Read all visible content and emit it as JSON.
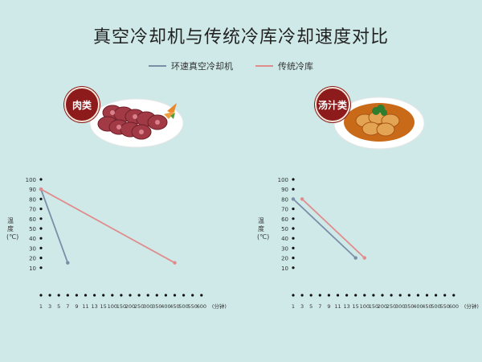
{
  "title": "真空冷却机与传统冷库冷却速度对比",
  "legend": [
    {
      "label": "环速真空冷却机",
      "color": "#7a8ea8"
    },
    {
      "label": "传统冷库",
      "color": "#e08c8c"
    }
  ],
  "badges": {
    "left": "肉类",
    "right": "汤汁类"
  },
  "chart_data": [
    {
      "type": "line",
      "ylabel": "温度(℃)",
      "xlabel_unit": "(分钟)",
      "categories": [
        "1",
        "3",
        "5",
        "7",
        "9",
        "11",
        "13",
        "15",
        "100",
        "150",
        "200",
        "250",
        "300",
        "350",
        "400",
        "450",
        "500",
        "550",
        "600"
      ],
      "yticks": [
        10,
        20,
        30,
        40,
        50,
        60,
        70,
        80,
        90,
        100
      ],
      "ylim": [
        0,
        100
      ],
      "series": [
        {
          "name": "环速真空冷却机",
          "color": "#7a8ea8",
          "points": [
            {
              "x": "1",
              "y": 90
            },
            {
              "x": "7",
              "y": 15
            }
          ]
        },
        {
          "name": "传统冷库",
          "color": "#e08c8c",
          "points": [
            {
              "x": "1",
              "y": 90
            },
            {
              "x": "450",
              "y": 15
            }
          ]
        }
      ]
    },
    {
      "type": "line",
      "ylabel": "温度(℃)",
      "xlabel_unit": "(分钟)",
      "categories": [
        "1",
        "3",
        "5",
        "7",
        "9",
        "11",
        "13",
        "15",
        "100",
        "150",
        "200",
        "250",
        "300",
        "350",
        "400",
        "450",
        "500",
        "550",
        "600"
      ],
      "yticks": [
        10,
        20,
        30,
        40,
        50,
        60,
        70,
        80,
        90,
        100
      ],
      "ylim": [
        0,
        100
      ],
      "series": [
        {
          "name": "环速真空冷却机",
          "color": "#7a8ea8",
          "points": [
            {
              "x": "1",
              "y": 80
            },
            {
              "x": "15",
              "y": 20
            }
          ]
        },
        {
          "name": "传统冷库",
          "color": "#e08c8c",
          "points": [
            {
              "x": "3",
              "y": 80
            },
            {
              "x": "100",
              "y": 20
            }
          ]
        }
      ]
    }
  ]
}
